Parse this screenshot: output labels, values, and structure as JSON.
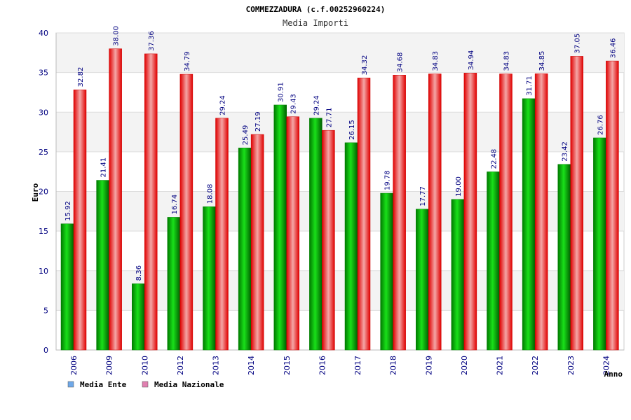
{
  "chart_data": {
    "type": "bar",
    "title": "COMMEZZADURA (c.f.00252960224)",
    "subtitle": "Media Importi",
    "ylabel": "Euro",
    "xlabel": "Anno",
    "ylim": [
      0,
      40
    ],
    "yticks": [
      0,
      5,
      10,
      15,
      20,
      25,
      30,
      35,
      40
    ],
    "ytick_labels": [
      "0",
      "5",
      "10",
      "15",
      "20",
      "25",
      "30",
      "35",
      "40"
    ],
    "grid": true,
    "legend_position": "bottom-left",
    "categories": [
      "2006",
      "2009",
      "2010",
      "2012",
      "2013",
      "2014",
      "2015",
      "2016",
      "2017",
      "2018",
      "2019",
      "2020",
      "2021",
      "2022",
      "2023",
      "2024"
    ],
    "series": [
      {
        "name": "Media Ente",
        "color": "#00c000",
        "legend_color": "#6fa8e8",
        "values": [
          15.92,
          21.41,
          8.36,
          16.74,
          18.08,
          25.49,
          30.91,
          29.24,
          26.15,
          19.78,
          17.77,
          19.0,
          22.48,
          31.71,
          23.42,
          26.76
        ],
        "labels": [
          "15.92",
          "21.41",
          "8.36",
          "16.74",
          "18.08",
          "25.49",
          "30.91",
          "29.24",
          "26.15",
          "19.78",
          "17.77",
          "19.00",
          "22.48",
          "31.71",
          "23.42",
          "26.76"
        ]
      },
      {
        "name": "Media Nazionale",
        "color": "#ff2020",
        "legend_color": "#e080b0",
        "values": [
          32.82,
          38.0,
          37.36,
          34.79,
          29.24,
          27.19,
          29.43,
          27.71,
          34.32,
          34.68,
          34.83,
          34.94,
          34.83,
          34.85,
          37.05,
          36.46
        ],
        "labels": [
          "32.82",
          "38.00",
          "37.36",
          "34.79",
          "29.24",
          "27.19",
          "29.43",
          "27.71",
          "34.32",
          "34.68",
          "34.83",
          "34.94",
          "34.83",
          "34.85",
          "37.05",
          "36.46"
        ]
      }
    ]
  }
}
